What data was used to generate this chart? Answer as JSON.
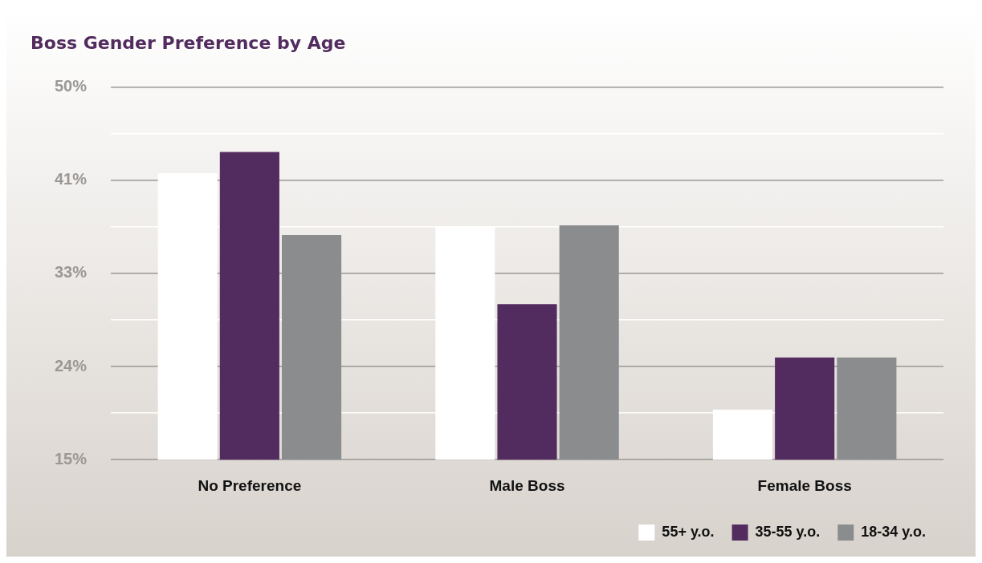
{
  "chart_data": {
    "type": "bar",
    "title": "Boss Gender Preference by Age",
    "categories": [
      "No Preference",
      "Male Boss",
      "Female Boss"
    ],
    "series": [
      {
        "name": "55+ y.o.",
        "color": "#ffffff",
        "values": [
          41.9,
          36.9,
          19.7
        ]
      },
      {
        "name": "35-55 y.o.",
        "color": "#522b5f",
        "values": [
          43.9,
          29.6,
          24.6
        ]
      },
      {
        "name": "18-34 y.o.",
        "color": "#8b8c8e",
        "values": [
          36.1,
          37,
          24.6
        ]
      }
    ],
    "ylim": [
      15,
      50
    ],
    "yticks": [
      {
        "value": 15,
        "label": "15%"
      },
      {
        "value": 19.375,
        "label": null
      },
      {
        "value": 23.75,
        "label": "24%"
      },
      {
        "value": 28.125,
        "label": null
      },
      {
        "value": 32.5,
        "label": "33%"
      },
      {
        "value": 36.875,
        "label": null
      },
      {
        "value": 41.25,
        "label": "41%"
      },
      {
        "value": 45.625,
        "label": null
      },
      {
        "value": 50,
        "label": "50%"
      }
    ],
    "grid": "y",
    "legend": "bottom right"
  }
}
